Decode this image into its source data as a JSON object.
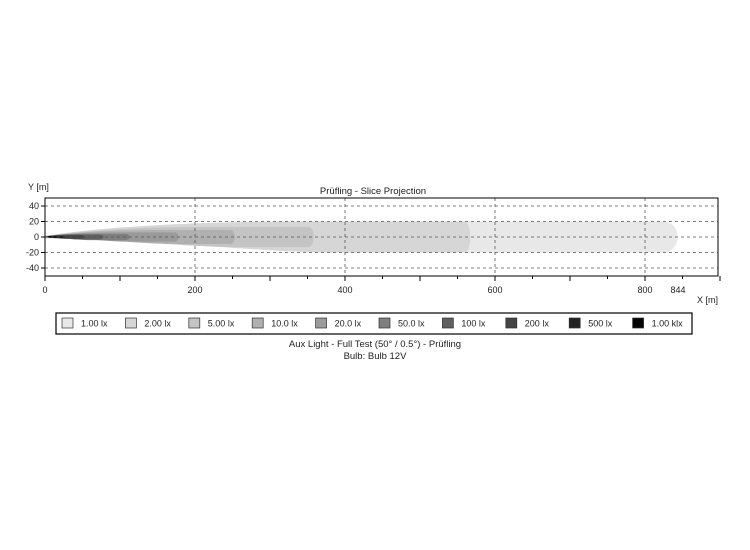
{
  "chart_data": {
    "type": "heatmap",
    "title": "Prüfling - Slice Projection",
    "xlabel": "X [m]",
    "ylabel": "Y [m]",
    "xlim": [
      0,
      900
    ],
    "ylim": [
      -50,
      50
    ],
    "x_ticks": [
      "0",
      "200",
      "400",
      "600",
      "800",
      "844"
    ],
    "x_tick_values": [
      0,
      200,
      400,
      600,
      800,
      844
    ],
    "y_ticks": [
      "40",
      "20",
      "0",
      "-20",
      "-40"
    ],
    "y_tick_values": [
      40,
      20,
      0,
      -20,
      -40
    ],
    "grid": true,
    "legend_position": "bottom",
    "levels": [
      {
        "label": "1.00 lx",
        "color": "#e8e8e8",
        "reach_m": 850,
        "half_width_m": 20,
        "peak_x_m": 420
      },
      {
        "label": "2.00 lx",
        "color": "#d6d6d6",
        "reach_m": 570,
        "half_width_m": 20,
        "peak_x_m": 380
      },
      {
        "label": "5.00 lx",
        "color": "#c4c4c4",
        "reach_m": 360,
        "half_width_m": 13,
        "peak_x_m": 250
      },
      {
        "label": "10.0 lx",
        "color": "#b0b0b0",
        "reach_m": 255,
        "half_width_m": 9,
        "peak_x_m": 170
      },
      {
        "label": "20.0 lx",
        "color": "#9a9a9a",
        "reach_m": 180,
        "half_width_m": 6,
        "peak_x_m": 110
      },
      {
        "label": "50.0 lx",
        "color": "#7e7e7e",
        "reach_m": 115,
        "half_width_m": 4,
        "peak_x_m": 60
      },
      {
        "label": "100 lx",
        "color": "#5f5f5f",
        "reach_m": 80,
        "half_width_m": 3,
        "peak_x_m": 40
      },
      {
        "label": "200 lx",
        "color": "#444444",
        "reach_m": 55,
        "half_width_m": 2.2,
        "peak_x_m": 26
      },
      {
        "label": "500 lx",
        "color": "#222222",
        "reach_m": 30,
        "half_width_m": 1.5,
        "peak_x_m": 14
      },
      {
        "label": "1.00 klx",
        "color": "#050505",
        "reach_m": 16,
        "half_width_m": 1,
        "peak_x_m": 7
      }
    ]
  },
  "caption": {
    "line1": "Aux Light - Full Test (50° / 0.5°) - Prüfling",
    "line2": "Bulb: Bulb 12V"
  }
}
